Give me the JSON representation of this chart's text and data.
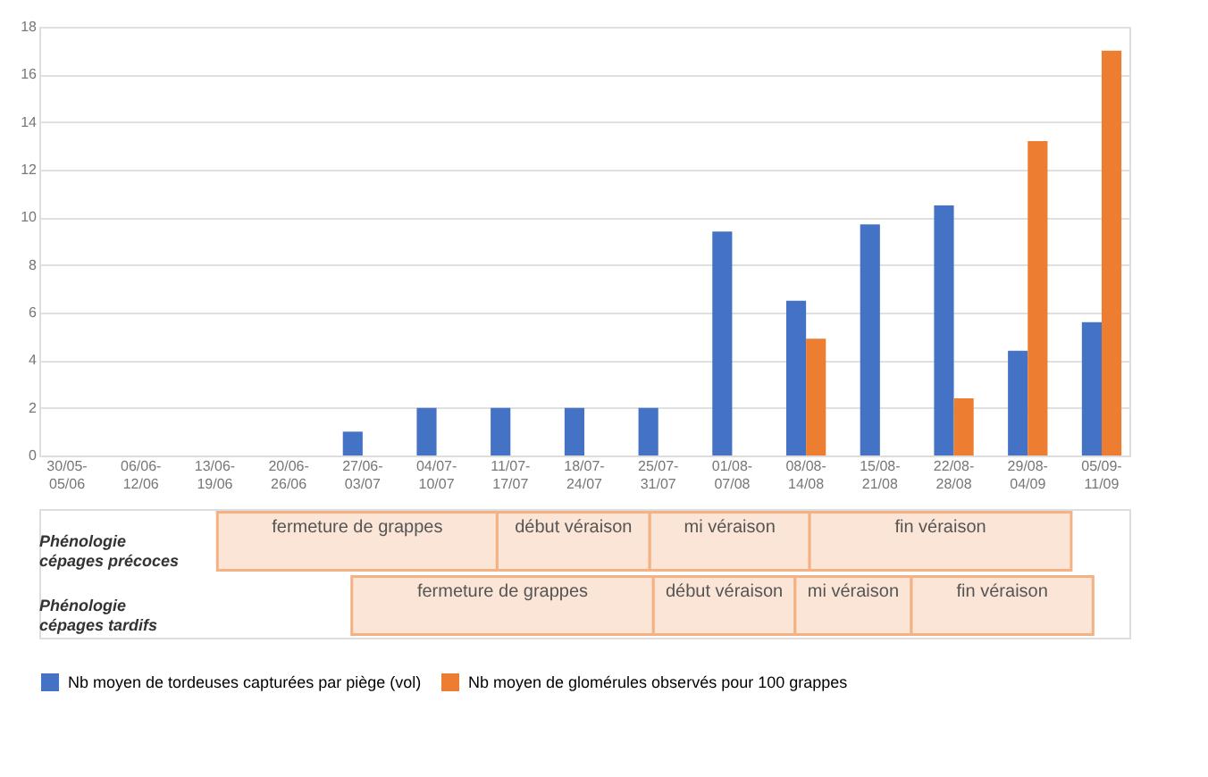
{
  "chart_data": {
    "type": "bar",
    "categories": [
      "30/05-05/06",
      "06/06-12/06",
      "13/06-19/06",
      "20/06-26/06",
      "27/06-03/07",
      "04/07-10/07",
      "11/07-17/07",
      "18/07-24/07",
      "25/07-31/07",
      "01/08-07/08",
      "08/08-14/08",
      "15/08-21/08",
      "22/08-28/08",
      "29/08-04/09",
      "05/09-11/09"
    ],
    "series": [
      {
        "name": "Nb moyen de tordeuses capturées par piège (vol)",
        "color": "#4472c4",
        "values": [
          0,
          0,
          0,
          0,
          1,
          2,
          2,
          2,
          2,
          9.4,
          6.5,
          9.7,
          10.5,
          4.4,
          5.6
        ]
      },
      {
        "name": "Nb moyen de glomérules observés pour 100 grappes",
        "color": "#ed7d31",
        "values": [
          0,
          0,
          0,
          0,
          0,
          0,
          0,
          0,
          0,
          0,
          4.9,
          0,
          2.4,
          13.2,
          17
        ]
      }
    ],
    "ylim": [
      0,
      18
    ],
    "yticks": [
      0,
      2,
      4,
      6,
      8,
      10,
      12,
      14,
      16,
      18
    ],
    "grid": "y",
    "legend": "bottom",
    "annotations": [
      "Phénologie cépages précoces",
      "fermeture de grappes",
      "début véraison",
      "mi véraison",
      "fin véraison",
      "Phénologie cépages tardifs",
      "fermeture de grappes",
      "début véraison",
      "mi véraison",
      "fin véraison"
    ]
  }
}
